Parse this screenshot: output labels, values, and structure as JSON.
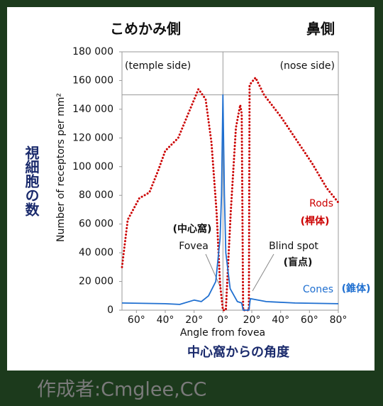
{
  "chart_data": {
    "type": "line",
    "title_left": "こめかみ側",
    "title_right": "鼻側",
    "ylabel": "Number of receptors per mm²",
    "ylabel_ja": "視細胞の数",
    "xlabel": "Angle from fovea",
    "xlabel_ja": "中心窩からの角度",
    "corner_left": "(temple side)",
    "corner_right": "(nose side)",
    "xlim": [
      -70,
      80
    ],
    "ylim": [
      0,
      180000
    ],
    "xticks": [
      {
        "value": -60,
        "label": "60°"
      },
      {
        "value": -40,
        "label": "40°"
      },
      {
        "value": -20,
        "label": "20°"
      },
      {
        "value": 0,
        "label": "0°"
      },
      {
        "value": 20,
        "label": "20°"
      },
      {
        "value": 40,
        "label": "40°"
      },
      {
        "value": 60,
        "label": "60°"
      },
      {
        "value": 80,
        "label": "80°"
      }
    ],
    "yticks": [
      0,
      {
        "value": 20000,
        "label": "20 000"
      },
      {
        "value": 40000,
        "label": "40 000"
      },
      {
        "value": 60000,
        "label": "60 000"
      },
      {
        "value": 80000,
        "label": "80 000"
      },
      {
        "value": 100000,
        "label": "100 000"
      },
      {
        "value": 120000,
        "label": "120 000"
      },
      {
        "value": 140000,
        "label": "140 000"
      },
      {
        "value": 160000,
        "label": "160 000"
      },
      {
        "value": 180000,
        "label": "180 000"
      }
    ],
    "series": [
      {
        "name": "Rods",
        "name_ja": "(桿体)",
        "color": "#cc0000",
        "style": "dotted",
        "x": [
          -70,
          -66,
          -58,
          -51,
          -45,
          -40,
          -31,
          -24,
          -17,
          -12,
          -8,
          -4.4,
          -2,
          0,
          2,
          5.4,
          9,
          12,
          13,
          14,
          18,
          18.5,
          22.6,
          28.5,
          40,
          52,
          62,
          72,
          80
        ],
        "values": [
          30000,
          63000,
          78000,
          82000,
          97000,
          111000,
          120000,
          137000,
          154000,
          147000,
          117000,
          68000,
          18000,
          0,
          0,
          68000,
          127000,
          143000,
          137000,
          0,
          0,
          157000,
          162000,
          150000,
          135000,
          117000,
          102000,
          85000,
          75000
        ]
      },
      {
        "name": "Cones",
        "name_ja": "(錐体)",
        "color": "#1f6fd0",
        "style": "solid",
        "x": [
          -70,
          -40,
          -30,
          -20,
          -15,
          -10,
          -5,
          -2,
          -1,
          0,
          1,
          2,
          5,
          10,
          13,
          14,
          18,
          19,
          30,
          50,
          80
        ],
        "values": [
          5000,
          4500,
          4000,
          7000,
          6000,
          10000,
          20000,
          50000,
          80000,
          150000,
          80000,
          40000,
          15000,
          6000,
          5000,
          0,
          0,
          8000,
          6000,
          5000,
          4500
        ]
      }
    ],
    "annotations": [
      {
        "label_ja": "(中心窩)",
        "label": "Fovea"
      },
      {
        "label": "Blind spot",
        "label_ja": "(盲点)"
      }
    ],
    "credit": "作成者:Cmglee,CC"
  }
}
